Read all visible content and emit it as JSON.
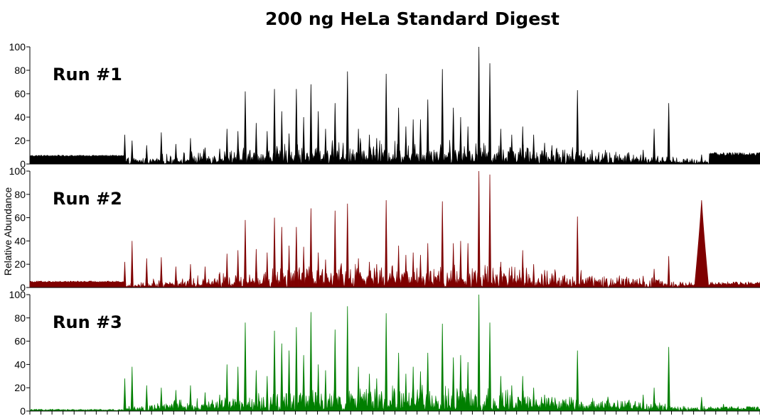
{
  "title": "200 ng HeLa Standard Digest",
  "chart_data": {
    "type": "area",
    "title": "200 ng HeLa Standard Digest",
    "ylabel": "Relative Abundance",
    "xlabel": "",
    "ylim": [
      0,
      100
    ],
    "yticks": [
      "0",
      "20",
      "40",
      "60",
      "80",
      "100"
    ],
    "grid": false,
    "panels": [
      {
        "name": "Run #1",
        "color": "#000000",
        "baseline": 7,
        "background_early": 7,
        "peaks": [
          {
            "x": 13,
            "y": 25
          },
          {
            "x": 14,
            "y": 20
          },
          {
            "x": 16,
            "y": 16
          },
          {
            "x": 18,
            "y": 27
          },
          {
            "x": 20,
            "y": 17
          },
          {
            "x": 22,
            "y": 22
          },
          {
            "x": 24,
            "y": 14
          },
          {
            "x": 26,
            "y": 13
          },
          {
            "x": 27,
            "y": 30
          },
          {
            "x": 28.5,
            "y": 28
          },
          {
            "x": 29.5,
            "y": 62
          },
          {
            "x": 31,
            "y": 35
          },
          {
            "x": 32.5,
            "y": 28
          },
          {
            "x": 33.5,
            "y": 64
          },
          {
            "x": 34.5,
            "y": 45
          },
          {
            "x": 35.5,
            "y": 26
          },
          {
            "x": 36.5,
            "y": 64
          },
          {
            "x": 37.5,
            "y": 40
          },
          {
            "x": 38.5,
            "y": 68
          },
          {
            "x": 39.5,
            "y": 45
          },
          {
            "x": 40.5,
            "y": 30
          },
          {
            "x": 41.8,
            "y": 52
          },
          {
            "x": 43.5,
            "y": 79
          },
          {
            "x": 45,
            "y": 30
          },
          {
            "x": 46.5,
            "y": 25
          },
          {
            "x": 47.5,
            "y": 22
          },
          {
            "x": 48.8,
            "y": 77
          },
          {
            "x": 50.5,
            "y": 48
          },
          {
            "x": 51.5,
            "y": 32
          },
          {
            "x": 52.5,
            "y": 38
          },
          {
            "x": 53.5,
            "y": 38
          },
          {
            "x": 54.5,
            "y": 55
          },
          {
            "x": 56.5,
            "y": 81
          },
          {
            "x": 58,
            "y": 48
          },
          {
            "x": 59,
            "y": 40
          },
          {
            "x": 60,
            "y": 32
          },
          {
            "x": 61.5,
            "y": 100
          },
          {
            "x": 63,
            "y": 86
          },
          {
            "x": 64.5,
            "y": 30
          },
          {
            "x": 66,
            "y": 25
          },
          {
            "x": 67.5,
            "y": 32
          },
          {
            "x": 69,
            "y": 25
          },
          {
            "x": 70.5,
            "y": 18
          },
          {
            "x": 71.5,
            "y": 16
          },
          {
            "x": 73,
            "y": 12
          },
          {
            "x": 75,
            "y": 63
          },
          {
            "x": 77,
            "y": 12
          },
          {
            "x": 79,
            "y": 10
          },
          {
            "x": 82,
            "y": 10
          },
          {
            "x": 84,
            "y": 12
          },
          {
            "x": 85.5,
            "y": 30
          },
          {
            "x": 87.5,
            "y": 52
          },
          {
            "x": 92,
            "y": 8
          },
          {
            "x": 95,
            "y": 6
          },
          {
            "x": 100,
            "y": 6
          }
        ]
      },
      {
        "name": "Run #2",
        "color": "#7f0000",
        "baseline": 2,
        "background_early": 5,
        "peaks": [
          {
            "x": 13,
            "y": 22
          },
          {
            "x": 14,
            "y": 40
          },
          {
            "x": 16,
            "y": 25
          },
          {
            "x": 18,
            "y": 26
          },
          {
            "x": 20,
            "y": 18
          },
          {
            "x": 22,
            "y": 20
          },
          {
            "x": 24,
            "y": 18
          },
          {
            "x": 26,
            "y": 13
          },
          {
            "x": 27,
            "y": 29
          },
          {
            "x": 28.5,
            "y": 32
          },
          {
            "x": 29.5,
            "y": 58
          },
          {
            "x": 31,
            "y": 33
          },
          {
            "x": 32.5,
            "y": 30
          },
          {
            "x": 33.5,
            "y": 60
          },
          {
            "x": 34.5,
            "y": 52
          },
          {
            "x": 35.5,
            "y": 36
          },
          {
            "x": 36.5,
            "y": 52
          },
          {
            "x": 37.5,
            "y": 35
          },
          {
            "x": 38.5,
            "y": 68
          },
          {
            "x": 39.5,
            "y": 30
          },
          {
            "x": 40.5,
            "y": 24
          },
          {
            "x": 41.8,
            "y": 66
          },
          {
            "x": 43.5,
            "y": 72
          },
          {
            "x": 45,
            "y": 25
          },
          {
            "x": 46.5,
            "y": 22
          },
          {
            "x": 47.5,
            "y": 20
          },
          {
            "x": 48.8,
            "y": 75
          },
          {
            "x": 50.5,
            "y": 36
          },
          {
            "x": 51.5,
            "y": 28
          },
          {
            "x": 52.5,
            "y": 30
          },
          {
            "x": 53.5,
            "y": 28
          },
          {
            "x": 54.5,
            "y": 38
          },
          {
            "x": 56.5,
            "y": 74
          },
          {
            "x": 58,
            "y": 38
          },
          {
            "x": 59,
            "y": 40
          },
          {
            "x": 60,
            "y": 38
          },
          {
            "x": 61.5,
            "y": 100
          },
          {
            "x": 63,
            "y": 97
          },
          {
            "x": 64.5,
            "y": 22
          },
          {
            "x": 66,
            "y": 18
          },
          {
            "x": 67.5,
            "y": 32
          },
          {
            "x": 69,
            "y": 20
          },
          {
            "x": 70.5,
            "y": 15
          },
          {
            "x": 71.5,
            "y": 12
          },
          {
            "x": 73,
            "y": 10
          },
          {
            "x": 75,
            "y": 61
          },
          {
            "x": 77,
            "y": 10
          },
          {
            "x": 79,
            "y": 8
          },
          {
            "x": 82,
            "y": 8
          },
          {
            "x": 84,
            "y": 10
          },
          {
            "x": 85.5,
            "y": 16
          },
          {
            "x": 87.5,
            "y": 27
          },
          {
            "x": 92,
            "y": 75
          },
          {
            "x": 95,
            "y": 4
          },
          {
            "x": 100,
            "y": 2
          }
        ]
      },
      {
        "name": "Run #3",
        "color": "#007f00",
        "baseline": 1,
        "background_early": 1,
        "peaks": [
          {
            "x": 13,
            "y": 28
          },
          {
            "x": 14,
            "y": 38
          },
          {
            "x": 16,
            "y": 22
          },
          {
            "x": 18,
            "y": 20
          },
          {
            "x": 20,
            "y": 18
          },
          {
            "x": 22,
            "y": 22
          },
          {
            "x": 24,
            "y": 16
          },
          {
            "x": 26,
            "y": 14
          },
          {
            "x": 27,
            "y": 40
          },
          {
            "x": 28.5,
            "y": 38
          },
          {
            "x": 29.5,
            "y": 76
          },
          {
            "x": 31,
            "y": 35
          },
          {
            "x": 32.5,
            "y": 30
          },
          {
            "x": 33.5,
            "y": 69
          },
          {
            "x": 34.5,
            "y": 58
          },
          {
            "x": 35.5,
            "y": 52
          },
          {
            "x": 36.5,
            "y": 72
          },
          {
            "x": 37.5,
            "y": 48
          },
          {
            "x": 38.5,
            "y": 85
          },
          {
            "x": 39.5,
            "y": 40
          },
          {
            "x": 40.5,
            "y": 35
          },
          {
            "x": 41.8,
            "y": 70
          },
          {
            "x": 43.5,
            "y": 90
          },
          {
            "x": 45,
            "y": 38
          },
          {
            "x": 46.5,
            "y": 32
          },
          {
            "x": 47.5,
            "y": 28
          },
          {
            "x": 48.8,
            "y": 84
          },
          {
            "x": 50.5,
            "y": 50
          },
          {
            "x": 51.5,
            "y": 32
          },
          {
            "x": 52.5,
            "y": 38
          },
          {
            "x": 53.5,
            "y": 34
          },
          {
            "x": 54.5,
            "y": 50
          },
          {
            "x": 56.5,
            "y": 75
          },
          {
            "x": 58,
            "y": 46
          },
          {
            "x": 59,
            "y": 48
          },
          {
            "x": 60,
            "y": 42
          },
          {
            "x": 61.5,
            "y": 100
          },
          {
            "x": 63,
            "y": 76
          },
          {
            "x": 64.5,
            "y": 30
          },
          {
            "x": 66,
            "y": 22
          },
          {
            "x": 67.5,
            "y": 30
          },
          {
            "x": 69,
            "y": 20
          },
          {
            "x": 70.5,
            "y": 14
          },
          {
            "x": 71.5,
            "y": 12
          },
          {
            "x": 73,
            "y": 10
          },
          {
            "x": 75,
            "y": 52
          },
          {
            "x": 77,
            "y": 8
          },
          {
            "x": 79,
            "y": 8
          },
          {
            "x": 82,
            "y": 9
          },
          {
            "x": 84,
            "y": 14
          },
          {
            "x": 85.5,
            "y": 20
          },
          {
            "x": 87.5,
            "y": 55
          },
          {
            "x": 92,
            "y": 12
          },
          {
            "x": 95,
            "y": 6
          },
          {
            "x": 100,
            "y": 1
          }
        ]
      }
    ]
  }
}
